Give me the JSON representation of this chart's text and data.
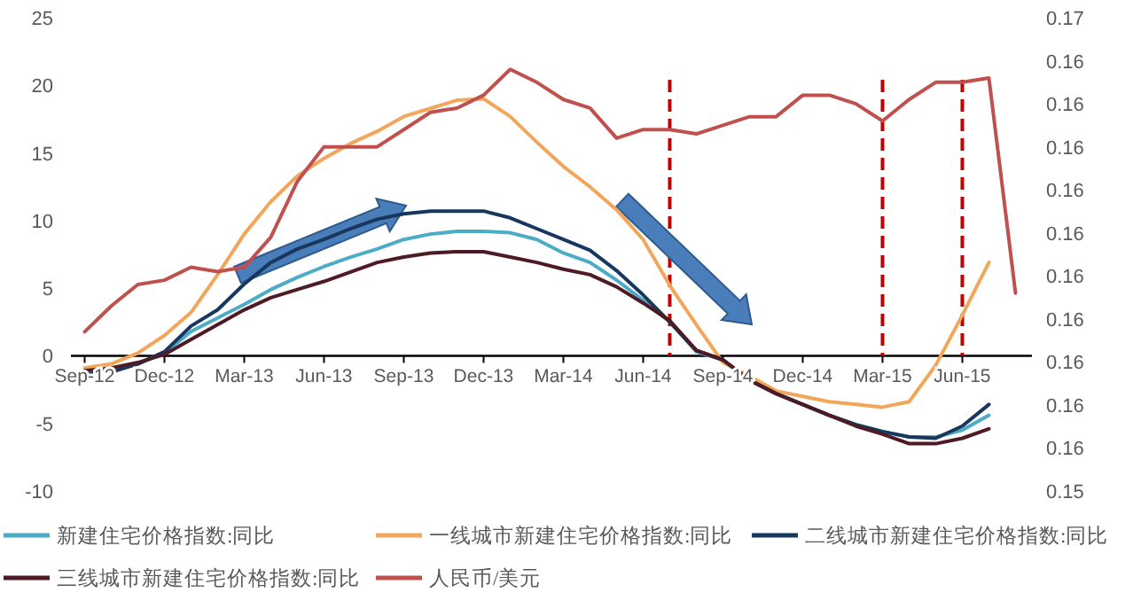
{
  "chart_data": {
    "type": "line",
    "x": [
      "2012-09",
      "2012-10",
      "2012-11",
      "2012-12",
      "2013-01",
      "2013-02",
      "2013-03",
      "2013-04",
      "2013-05",
      "2013-06",
      "2013-07",
      "2013-08",
      "2013-09",
      "2013-10",
      "2013-11",
      "2013-12",
      "2014-01",
      "2014-02",
      "2014-03",
      "2014-04",
      "2014-05",
      "2014-06",
      "2014-07",
      "2014-08",
      "2014-09",
      "2014-10",
      "2014-11",
      "2014-12",
      "2015-01",
      "2015-02",
      "2015-03",
      "2015-04",
      "2015-05",
      "2015-06",
      "2015-07",
      "2015-08"
    ],
    "series": [
      {
        "name": "新建住宅价格指数:同比",
        "color": "#4bacc6",
        "values": [
          -1.3,
          -1.1,
          -0.6,
          0.2,
          1.8,
          2.8,
          3.8,
          4.9,
          5.8,
          6.6,
          7.3,
          7.9,
          8.6,
          9.0,
          9.2,
          9.2,
          9.1,
          8.6,
          7.6,
          6.9,
          5.6,
          4.1,
          2.5,
          0.3,
          -0.3,
          -1.8,
          -2.8,
          -3.6,
          -4.4,
          -5.1,
          -5.6,
          -6.0,
          -6.0,
          -5.5,
          -4.4,
          null
        ]
      },
      {
        "name": "一线城市新建住宅价格指数:同比",
        "color": "#f2a65a",
        "values": [
          -0.9,
          -0.6,
          0.2,
          1.5,
          3.2,
          6.0,
          9.0,
          11.4,
          13.3,
          14.6,
          15.7,
          16.6,
          17.7,
          18.3,
          18.9,
          19.0,
          17.7,
          15.8,
          14.0,
          12.5,
          10.8,
          8.6,
          5.2,
          2.3,
          -0.5,
          -1.5,
          -2.6,
          -3.0,
          -3.4,
          -3.6,
          -3.8,
          -3.4,
          -0.7,
          3.0,
          6.9,
          null
        ]
      },
      {
        "name": "二线城市新建住宅价格指数:同比",
        "color": "#17375e",
        "values": [
          -1.4,
          -1.2,
          -0.6,
          0.3,
          2.2,
          3.4,
          5.3,
          6.9,
          7.9,
          8.6,
          9.4,
          10.1,
          10.5,
          10.7,
          10.7,
          10.7,
          10.2,
          9.4,
          8.6,
          7.8,
          6.3,
          4.5,
          2.5,
          0.4,
          -0.3,
          -1.8,
          -2.8,
          -3.6,
          -4.4,
          -5.1,
          -5.6,
          -6.0,
          -6.1,
          -5.2,
          -3.6,
          null
        ]
      },
      {
        "name": "三线城市新建住宅价格指数:同比",
        "color": "#4e1a24",
        "values": [
          -1.1,
          -0.9,
          -0.5,
          0.1,
          1.2,
          2.3,
          3.4,
          4.3,
          4.9,
          5.5,
          6.2,
          6.9,
          7.3,
          7.6,
          7.7,
          7.7,
          7.3,
          6.9,
          6.4,
          6.0,
          5.1,
          3.9,
          2.6,
          0.4,
          -0.3,
          -1.8,
          -2.8,
          -3.6,
          -4.4,
          -5.2,
          -5.8,
          -6.5,
          -6.5,
          -6.1,
          -5.4,
          null
        ]
      },
      {
        "name": "人民币/美元",
        "color": "#c0504d",
        "axis": "y2",
        "values": [
          0.1577,
          0.1583,
          0.1588,
          0.1589,
          0.1592,
          0.1591,
          0.1592,
          0.1599,
          0.1612,
          0.162,
          0.162,
          0.162,
          0.1624,
          0.1628,
          0.1629,
          0.1632,
          0.1638,
          0.1635,
          0.1631,
          0.1629,
          0.1622,
          0.1624,
          0.1624,
          0.1623,
          0.1625,
          0.1627,
          0.1627,
          0.1632,
          0.1632,
          0.163,
          0.1626,
          0.1631,
          0.1635,
          0.1635,
          0.1636,
          0.1586
        ]
      }
    ],
    "xlim": [
      "2012-08-16",
      "2015-08-16"
    ],
    "xticks": [
      {
        "value": "2012-09",
        "label": "Sep-12"
      },
      {
        "value": "2012-12",
        "label": "Dec-12"
      },
      {
        "value": "2013-03",
        "label": "Mar-13"
      },
      {
        "value": "2013-06",
        "label": "Jun-13"
      },
      {
        "value": "2013-09",
        "label": "Sep-13"
      },
      {
        "value": "2013-12",
        "label": "Dec-13"
      },
      {
        "value": "2014-03",
        "label": "Mar-14"
      },
      {
        "value": "2014-06",
        "label": "Jun-14"
      },
      {
        "value": "2014-09",
        "label": "Sep-14"
      },
      {
        "value": "2014-12",
        "label": "Dec-14"
      },
      {
        "value": "2015-03",
        "label": "Mar-15"
      },
      {
        "value": "2015-06",
        "label": "Jun-15"
      }
    ],
    "ylim": [
      -10,
      25
    ],
    "yticks": [
      -10,
      -5,
      0,
      5,
      10,
      15,
      20,
      25
    ],
    "y2lim": [
      0.154,
      0.165
    ],
    "y2ticks": [
      {
        "value": 0.154,
        "label": "0.15"
      },
      {
        "value": 0.155,
        "label": "0.16"
      },
      {
        "value": 0.156,
        "label": "0.16"
      },
      {
        "value": 0.157,
        "label": "0.16"
      },
      {
        "value": 0.158,
        "label": "0.16"
      },
      {
        "value": 0.159,
        "label": "0.16"
      },
      {
        "value": 0.16,
        "label": "0.16"
      },
      {
        "value": 0.161,
        "label": "0.16"
      },
      {
        "value": 0.162,
        "label": "0.16"
      },
      {
        "value": 0.163,
        "label": "0.16"
      },
      {
        "value": 0.164,
        "label": "0.16"
      },
      {
        "value": 0.165,
        "label": "0.17"
      }
    ],
    "ref_lines": [
      {
        "axis": "x",
        "value": "2014-07",
        "color": "#c00000",
        "line_style": "dashed"
      },
      {
        "axis": "x",
        "value": "2015-03",
        "color": "#c00000",
        "line_style": "dashed"
      },
      {
        "axis": "x",
        "value": "2015-06",
        "color": "#c00000",
        "line_style": "dashed"
      }
    ],
    "legend": "bottom"
  }
}
